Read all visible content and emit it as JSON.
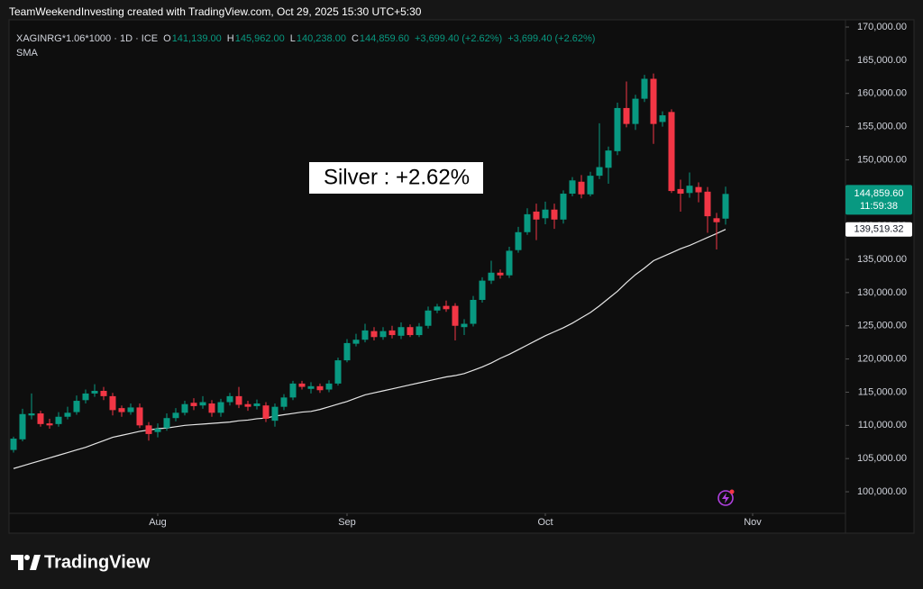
{
  "header": {
    "credit": "TeamWeekendInvesting created with TradingView.com, Oct 29, 2025 15:30 UTC+5:30"
  },
  "legend": {
    "symbol": "XAGINRG*1.06*1000 · 1D · ICE",
    "o_label": "O",
    "open": "141,139.00",
    "h_label": "H",
    "high": "145,962.00",
    "l_label": "L",
    "low": "140,238.00",
    "c_label": "C",
    "close": "144,859.60",
    "change": "+3,699.40 (+2.62%)",
    "change_repeat": "+3,699.40 (+2.62%)"
  },
  "chart_data": {
    "type": "candlestick",
    "annotation": "Silver : +2.62%",
    "up_color": "#089981",
    "down_color": "#f23645",
    "open": [
      106300,
      107900,
      111500,
      111800,
      110300,
      110200,
      111300,
      112000,
      113800,
      114800,
      115200,
      114400,
      112600,
      112000,
      112700,
      110000,
      109000,
      109600,
      111100,
      111900,
      113400,
      113000,
      113300,
      111900,
      113500,
      114400,
      113200,
      112900,
      113000,
      110700,
      112800,
      114200,
      116300,
      115500,
      115900,
      115400,
      116300,
      119800,
      122300,
      122900,
      124200,
      123300,
      124300,
      123500,
      124800,
      123600,
      125000,
      127300,
      128000,
      128000,
      124800,
      125300,
      128900,
      131800,
      133000,
      132600,
      136400,
      139100,
      142200,
      141200,
      142500,
      141000,
      144900,
      146700,
      144800,
      147600,
      148800,
      151300,
      157800,
      155400,
      159200,
      162200,
      155700,
      157200,
      145600,
      145000,
      145900,
      145200,
      141200,
      141139
    ],
    "high": [
      108300,
      112500,
      114800,
      112200,
      111000,
      112000,
      112800,
      114500,
      115400,
      116200,
      115800,
      114900,
      113000,
      113300,
      113300,
      110500,
      110300,
      111800,
      112600,
      113700,
      114100,
      114400,
      113800,
      114000,
      114900,
      115800,
      113700,
      113900,
      113500,
      113300,
      114700,
      116700,
      116700,
      116500,
      116300,
      116800,
      120200,
      123000,
      123800,
      125300,
      124800,
      124800,
      125000,
      125500,
      125200,
      125400,
      127900,
      128300,
      128800,
      128400,
      126000,
      129500,
      132300,
      134800,
      133500,
      136900,
      139900,
      142700,
      143400,
      143700,
      143400,
      145400,
      147400,
      147700,
      148200,
      155500,
      152000,
      158600,
      161800,
      159800,
      162800,
      163000,
      157300,
      157600,
      147000,
      148100,
      146600,
      145900,
      142000,
      145962
    ],
    "low": [
      105900,
      107600,
      110900,
      109800,
      109500,
      109800,
      110900,
      111600,
      113300,
      114300,
      113800,
      111500,
      111300,
      111600,
      109600,
      107700,
      108200,
      109200,
      110600,
      111500,
      112300,
      112500,
      111300,
      111300,
      113000,
      112600,
      112200,
      112400,
      110500,
      109800,
      112300,
      113800,
      115400,
      114800,
      114900,
      115000,
      116000,
      119500,
      121900,
      122500,
      122800,
      122900,
      123100,
      123000,
      123300,
      123300,
      124600,
      126900,
      127100,
      122800,
      123600,
      124900,
      128500,
      131300,
      132100,
      132200,
      136000,
      138700,
      137900,
      140300,
      139600,
      140400,
      144500,
      144200,
      144500,
      147100,
      146400,
      150700,
      154900,
      154500,
      158700,
      152400,
      155000,
      145000,
      142200,
      144300,
      143600,
      139000,
      136500,
      140238
    ],
    "close": [
      108000,
      111700,
      111800,
      110200,
      110000,
      111300,
      111900,
      113700,
      114800,
      115200,
      114400,
      112300,
      112000,
      112700,
      110000,
      108700,
      109500,
      111100,
      111900,
      113200,
      112900,
      113500,
      111900,
      113500,
      114400,
      113100,
      112800,
      113300,
      111000,
      112800,
      114200,
      116300,
      115800,
      115900,
      115300,
      116300,
      119800,
      122400,
      122900,
      124300,
      123300,
      124200,
      123600,
      124800,
      123600,
      124900,
      127300,
      127900,
      127500,
      125000,
      125300,
      128900,
      131800,
      133000,
      132600,
      136300,
      139100,
      141800,
      141000,
      142500,
      141000,
      144900,
      146900,
      144800,
      147600,
      148900,
      151400,
      157800,
      155400,
      159200,
      162200,
      155400,
      156700,
      145300,
      144900,
      146100,
      145100,
      141500,
      140600,
      144859.6
    ],
    "sma": {
      "name": "SMA",
      "color": "#e6e6e6",
      "values": [
        103500,
        103900,
        104300,
        104700,
        105100,
        105500,
        105900,
        106300,
        106700,
        107200,
        107700,
        108200,
        108500,
        108800,
        109100,
        109300,
        109500,
        109600,
        109800,
        110000,
        110100,
        110200,
        110300,
        110400,
        110500,
        110700,
        110800,
        111000,
        111100,
        111400,
        111600,
        111800,
        112000,
        112100,
        112400,
        112800,
        113200,
        113600,
        114100,
        114600,
        114900,
        115200,
        115500,
        115800,
        116100,
        116400,
        116700,
        117000,
        117300,
        117500,
        117800,
        118300,
        118800,
        119400,
        120100,
        120700,
        121400,
        122100,
        122800,
        123500,
        124100,
        124700,
        125400,
        126200,
        127000,
        128000,
        129100,
        130200,
        131500,
        132700,
        133700,
        134800,
        135400,
        136000,
        136600,
        137100,
        137700,
        138300,
        138900,
        139519.32
      ]
    },
    "last_price_label": "144,859.60",
    "countdown": "11:59:38",
    "sma_label": "139,519.32",
    "xlim": [
      -0.5,
      92.3
    ],
    "xticks": [
      {
        "value": 16,
        "label": "Aug"
      },
      {
        "value": 37,
        "label": "Sep"
      },
      {
        "value": 59,
        "label": "Oct"
      },
      {
        "value": 82,
        "label": "Nov"
      }
    ],
    "ylim": [
      96750,
      171085
    ],
    "yticks": [
      {
        "value": 100000,
        "label": "100,000.00"
      },
      {
        "value": 105000,
        "label": "105,000.00"
      },
      {
        "value": 110000,
        "label": "110,000.00"
      },
      {
        "value": 115000,
        "label": "115,000.00"
      },
      {
        "value": 120000,
        "label": "120,000.00"
      },
      {
        "value": 125000,
        "label": "125,000.00"
      },
      {
        "value": 130000,
        "label": "130,000.00"
      },
      {
        "value": 135000,
        "label": "135,000.00"
      },
      {
        "value": 140000,
        "label": "140,000.00"
      },
      {
        "value": 145000,
        "label": "145,000.00"
      },
      {
        "value": 150000,
        "label": "150,000.00"
      },
      {
        "value": 155000,
        "label": "155,000.00"
      },
      {
        "value": 160000,
        "label": "160,000.00"
      },
      {
        "value": 165000,
        "label": "165,000.00"
      },
      {
        "value": 170000,
        "label": "170,000.00"
      }
    ],
    "grid": false
  },
  "logo": {
    "text": "TradingView"
  }
}
